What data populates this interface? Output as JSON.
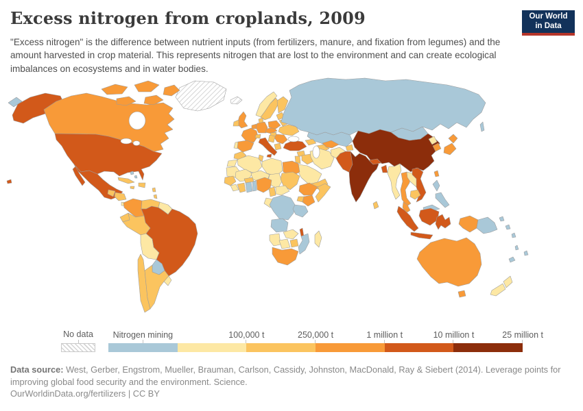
{
  "header": {
    "title": "Excess nitrogen from croplands, 2009",
    "subtitle": "\"Excess nitrogen\" is the difference between nutrient inputs (from fertilizers, manure, and fixation from legumes) and the amount harvested in crop material. This represents nitrogen that are lost to the environment and can create ecological imbalances on ecosystems and in water bodies.",
    "logo": {
      "line1": "Our World",
      "line2": "in Data",
      "bg_color": "#12325a",
      "accent_color": "#b5352a"
    }
  },
  "legend": {
    "no_data": {
      "label": "No data"
    },
    "mining": {
      "label": "Nitrogen mining",
      "color": "#a9c8d8"
    },
    "bins": [
      {
        "label": "100,000 t",
        "color": "#fde8a4"
      },
      {
        "label": "250,000 t",
        "color": "#fbc45f"
      },
      {
        "label": "1 million t",
        "color": "#f89a38"
      },
      {
        "label": "10 million t",
        "color": "#d2591a"
      },
      {
        "label": "25 million t",
        "color": "#8c2d0b"
      }
    ]
  },
  "footer": {
    "source_label": "Data source:",
    "source_text": " West, Gerber, Engstrom, Mueller, Brauman, Carlson, Cassidy, Johnston, MacDonald, Ray & Siebert (2014). Leverage points for improving global food security and the environment. Science.",
    "link_text": "OurWorldinData.org/fertilizers | CC BY"
  },
  "map": {
    "ocean_color": "#ffffff",
    "border_color": "#9b9b9b",
    "regions": {
      "greenland": "no_data",
      "iceland": "no_data",
      "russia": "mining",
      "russia_east_tip": "mining",
      "sakhalin": "mining",
      "kazakhstan": "mining",
      "mongolia": "mining",
      "paraguay": "mining",
      "bahamas": "mining",
      "ghana": "mining",
      "benin": "mining",
      "drc": "mining",
      "tanzania": "mining",
      "angola": "mining",
      "mozambique": "mining",
      "philippines": "mining",
      "malaysia_borneo": "mining",
      "papua_new_guinea": "mining",
      "png_islands": "mining",
      "solomon_islands": "mining",
      "vanuatu": "mining",
      "fiji": "mining",
      "new_caledonia": "mining",
      "norway": "b1",
      "guyanas": "b1",
      "bolivia": "b1",
      "uruguay": "b1",
      "panama_costa_rica": "b1",
      "portugal": "b1",
      "myanmar": "b1",
      "laos": "b1",
      "north_korea": "b1",
      "afghanistan": "b1",
      "iran": "b1",
      "saudi_arabia": "b1",
      "western_sahara": "b1",
      "algeria": "b1",
      "libya": "b1",
      "mauritania": "b1",
      "mali": "b1",
      "niger": "b1",
      "chad": "b1",
      "central_african_republic": "b1",
      "gabon_congo": "b1",
      "sierra_leone_liberia": "b1",
      "zambia": "b1",
      "namibia": "b1",
      "botswana": "b1",
      "madagascar": "b1",
      "new_zealand_north": "b1",
      "new_zealand_south": "b1",
      "sweden": "b2",
      "finland": "b2",
      "denmark": "b2",
      "ireland": "b2",
      "switzerland": "b2",
      "baltics": "b2",
      "belarus": "b2",
      "ukraine": "b2",
      "balkans": "b2",
      "hungary": "b2",
      "greece": "b2",
      "morocco": "b2",
      "tunisia": "b2",
      "sudan": "b2",
      "senegal_guinea": "b2",
      "burkina_faso": "b2",
      "ivory_coast": "b2",
      "cameroon": "b2",
      "uganda": "b2",
      "somalia": "b2",
      "zimbabwe": "b2",
      "yemen_oman": "b2",
      "iraq": "b2",
      "syria": "b2",
      "israel_jordan": "b2",
      "turkmenistan": "b2",
      "caucasus": "b2",
      "kyrgyzstan_tajikistan": "b2",
      "cuba": "b2",
      "jamaica": "b2",
      "hispaniola": "b2",
      "lesser_antilles": "b2",
      "guatemala": "b2",
      "honduras_nicaragua": "b2",
      "venezuela": "b2",
      "ecuador": "b2",
      "peru": "b2",
      "chile": "b2",
      "argentina": "b2",
      "cambodia": "b2",
      "sri_lanka": "b2",
      "canada": "b3",
      "canada_arctic_islands": "b3",
      "colombia": "b3",
      "uk": "b3",
      "france": "b3",
      "spain": "b3",
      "benelux": "b3",
      "germany": "b3",
      "poland": "b3",
      "czech_austria": "b3",
      "romania_bulgaria": "b3",
      "egypt": "b3",
      "nigeria": "b3",
      "ethiopia": "b3",
      "kenya": "b3",
      "south_africa": "b3",
      "uzbekistan": "b3",
      "thailand": "b3",
      "malaysia_peninsula": "b3",
      "south_korea": "b3",
      "japan_north": "b3",
      "japan_south": "b3",
      "taiwan": "b3",
      "papua_indonesia": "b3",
      "australia": "b3",
      "tasmania": "b3",
      "alaska": "b4",
      "usa": "b4",
      "hawaii": "b4",
      "mexico": "b4",
      "baja_california": "b4",
      "brazil": "b4",
      "italy": "b4",
      "sicily": "b4",
      "turkey": "b4",
      "pakistan": "b4",
      "nepal": "b4",
      "bangladesh": "b4",
      "vietnam": "b4",
      "sumatra": "b4",
      "java": "b4",
      "sulawesi": "b4",
      "kalimantan": "b4",
      "malawi": "b4",
      "china": "b5",
      "india": "b5"
    }
  }
}
